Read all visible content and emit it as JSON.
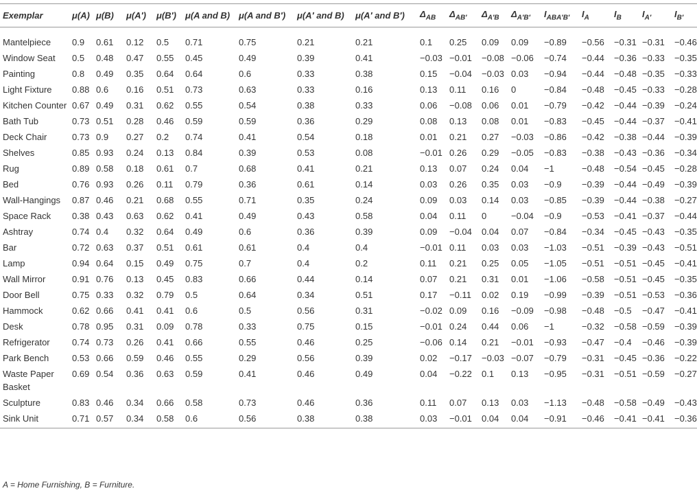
{
  "table": {
    "headers": [
      {
        "text": "Exemplar"
      },
      {
        "text": "μ(A)"
      },
      {
        "text": "μ(B)"
      },
      {
        "text": "μ(A′)"
      },
      {
        "text": "μ(B′)"
      },
      {
        "text": "μ(A and B)"
      },
      {
        "text": "μ(A and B′)"
      },
      {
        "text": "μ(A′ and B)"
      },
      {
        "text": "μ(A′ and B′)"
      },
      {
        "text": "Δ",
        "sub": "AB"
      },
      {
        "text": "Δ",
        "sub": "AB′"
      },
      {
        "text": "Δ",
        "sub": "A′B"
      },
      {
        "text": "Δ",
        "sub": "A′B′"
      },
      {
        "text": "I",
        "sub": "ABA′B′"
      },
      {
        "text": "I",
        "sub": "A"
      },
      {
        "text": "I",
        "sub": "B"
      },
      {
        "text": "I",
        "sub": "A′"
      },
      {
        "text": "I",
        "sub": "B′"
      }
    ],
    "rows": [
      [
        "Mantelpiece",
        "0.9",
        "0.61",
        "0.12",
        "0.5",
        "0.71",
        "0.75",
        "0.21",
        "0.21",
        "0.1",
        "0.25",
        "0.09",
        "0.09",
        "−0.89",
        "−0.56",
        "−0.31",
        "−0.31",
        "−0.46"
      ],
      [
        "Window Seat",
        "0.5",
        "0.48",
        "0.47",
        "0.55",
        "0.45",
        "0.49",
        "0.39",
        "0.41",
        "−0.03",
        "−0.01",
        "−0.08",
        "−0.06",
        "−0.74",
        "−0.44",
        "−0.36",
        "−0.33",
        "−0.35"
      ],
      [
        "Painting",
        "0.8",
        "0.49",
        "0.35",
        "0.64",
        "0.64",
        "0.6",
        "0.33",
        "0.38",
        "0.15",
        "−0.04",
        "−0.03",
        "0.03",
        "−0.94",
        "−0.44",
        "−0.48",
        "−0.35",
        "−0.33"
      ],
      [
        "Light Fixture",
        "0.88",
        "0.6",
        "0.16",
        "0.51",
        "0.73",
        "0.63",
        "0.33",
        "0.16",
        "0.13",
        "0.11",
        "0.16",
        "0",
        "−0.84",
        "−0.48",
        "−0.45",
        "−0.33",
        "−0.28"
      ],
      [
        "Kitchen Counter",
        "0.67",
        "0.49",
        "0.31",
        "0.62",
        "0.55",
        "0.54",
        "0.38",
        "0.33",
        "0.06",
        "−0.08",
        "0.06",
        "0.01",
        "−0.79",
        "−0.42",
        "−0.44",
        "−0.39",
        "−0.24"
      ],
      [
        "Bath Tub",
        "0.73",
        "0.51",
        "0.28",
        "0.46",
        "0.59",
        "0.59",
        "0.36",
        "0.29",
        "0.08",
        "0.13",
        "0.08",
        "0.01",
        "−0.83",
        "−0.45",
        "−0.44",
        "−0.37",
        "−0.41"
      ],
      [
        "Deck Chair",
        "0.73",
        "0.9",
        "0.27",
        "0.2",
        "0.74",
        "0.41",
        "0.54",
        "0.18",
        "0.01",
        "0.21",
        "0.27",
        "−0.03",
        "−0.86",
        "−0.42",
        "−0.38",
        "−0.44",
        "−0.39"
      ],
      [
        "Shelves",
        "0.85",
        "0.93",
        "0.24",
        "0.13",
        "0.84",
        "0.39",
        "0.53",
        "0.08",
        "−0.01",
        "0.26",
        "0.29",
        "−0.05",
        "−0.83",
        "−0.38",
        "−0.43",
        "−0.36",
        "−0.34"
      ],
      [
        "Rug",
        "0.89",
        "0.58",
        "0.18",
        "0.61",
        "0.7",
        "0.68",
        "0.41",
        "0.21",
        "0.13",
        "0.07",
        "0.24",
        "0.04",
        "−1",
        "−0.48",
        "−0.54",
        "−0.45",
        "−0.28"
      ],
      [
        "Bed",
        "0.76",
        "0.93",
        "0.26",
        "0.11",
        "0.79",
        "0.36",
        "0.61",
        "0.14",
        "0.03",
        "0.26",
        "0.35",
        "0.03",
        "−0.9",
        "−0.39",
        "−0.44",
        "−0.49",
        "−0.39"
      ],
      [
        "Wall-Hangings",
        "0.87",
        "0.46",
        "0.21",
        "0.68",
        "0.55",
        "0.71",
        "0.35",
        "0.24",
        "0.09",
        "0.03",
        "0.14",
        "0.03",
        "−0.85",
        "−0.39",
        "−0.44",
        "−0.38",
        "−0.27"
      ],
      [
        "Space Rack",
        "0.38",
        "0.43",
        "0.63",
        "0.62",
        "0.41",
        "0.49",
        "0.43",
        "0.58",
        "0.04",
        "0.11",
        "0",
        "−0.04",
        "−0.9",
        "−0.53",
        "−0.41",
        "−0.37",
        "−0.44"
      ],
      [
        "Ashtray",
        "0.74",
        "0.4",
        "0.32",
        "0.64",
        "0.49",
        "0.6",
        "0.36",
        "0.39",
        "0.09",
        "−0.04",
        "0.04",
        "0.07",
        "−0.84",
        "−0.34",
        "−0.45",
        "−0.43",
        "−0.35"
      ],
      [
        "Bar",
        "0.72",
        "0.63",
        "0.37",
        "0.51",
        "0.61",
        "0.61",
        "0.4",
        "0.4",
        "−0.01",
        "0.11",
        "0.03",
        "0.03",
        "−1.03",
        "−0.51",
        "−0.39",
        "−0.43",
        "−0.51"
      ],
      [
        "Lamp",
        "0.94",
        "0.64",
        "0.15",
        "0.49",
        "0.75",
        "0.7",
        "0.4",
        "0.2",
        "0.11",
        "0.21",
        "0.25",
        "0.05",
        "−1.05",
        "−0.51",
        "−0.51",
        "−0.45",
        "−0.41"
      ],
      [
        "Wall Mirror",
        "0.91",
        "0.76",
        "0.13",
        "0.45",
        "0.83",
        "0.66",
        "0.44",
        "0.14",
        "0.07",
        "0.21",
        "0.31",
        "0.01",
        "−1.06",
        "−0.58",
        "−0.51",
        "−0.45",
        "−0.35"
      ],
      [
        "Door Bell",
        "0.75",
        "0.33",
        "0.32",
        "0.79",
        "0.5",
        "0.64",
        "0.34",
        "0.51",
        "0.17",
        "−0.11",
        "0.02",
        "0.19",
        "−0.99",
        "−0.39",
        "−0.51",
        "−0.53",
        "−0.36"
      ],
      [
        "Hammock",
        "0.62",
        "0.66",
        "0.41",
        "0.41",
        "0.6",
        "0.5",
        "0.56",
        "0.31",
        "−0.02",
        "0.09",
        "0.16",
        "−0.09",
        "−0.98",
        "−0.48",
        "−0.5",
        "−0.47",
        "−0.41"
      ],
      [
        "Desk",
        "0.78",
        "0.95",
        "0.31",
        "0.09",
        "0.78",
        "0.33",
        "0.75",
        "0.15",
        "−0.01",
        "0.24",
        "0.44",
        "0.06",
        "−1",
        "−0.32",
        "−0.58",
        "−0.59",
        "−0.39"
      ],
      [
        "Refrigerator",
        "0.74",
        "0.73",
        "0.26",
        "0.41",
        "0.66",
        "0.55",
        "0.46",
        "0.25",
        "−0.06",
        "0.14",
        "0.21",
        "−0.01",
        "−0.93",
        "−0.47",
        "−0.4",
        "−0.46",
        "−0.39"
      ],
      [
        "Park Bench",
        "0.53",
        "0.66",
        "0.59",
        "0.46",
        "0.55",
        "0.29",
        "0.56",
        "0.39",
        "0.02",
        "−0.17",
        "−0.03",
        "−0.07",
        "−0.79",
        "−0.31",
        "−0.45",
        "−0.36",
        "−0.22"
      ],
      [
        "Waste Paper Basket",
        "0.69",
        "0.54",
        "0.36",
        "0.63",
        "0.59",
        "0.41",
        "0.46",
        "0.49",
        "0.04",
        "−0.22",
        "0.1",
        "0.13",
        "−0.95",
        "−0.31",
        "−0.51",
        "−0.59",
        "−0.27"
      ],
      [
        "Sculpture",
        "0.83",
        "0.46",
        "0.34",
        "0.66",
        "0.58",
        "0.73",
        "0.46",
        "0.36",
        "0.11",
        "0.07",
        "0.13",
        "0.03",
        "−1.13",
        "−0.48",
        "−0.58",
        "−0.49",
        "−0.43"
      ],
      [
        "Sink Unit",
        "0.71",
        "0.57",
        "0.34",
        "0.58",
        "0.6",
        "0.56",
        "0.38",
        "0.38",
        "0.03",
        "−0.01",
        "0.04",
        "0.04",
        "−0.91",
        "−0.46",
        "−0.41",
        "−0.41",
        "−0.36"
      ]
    ],
    "footnote": "A = Home Furnishing, B = Furniture."
  }
}
